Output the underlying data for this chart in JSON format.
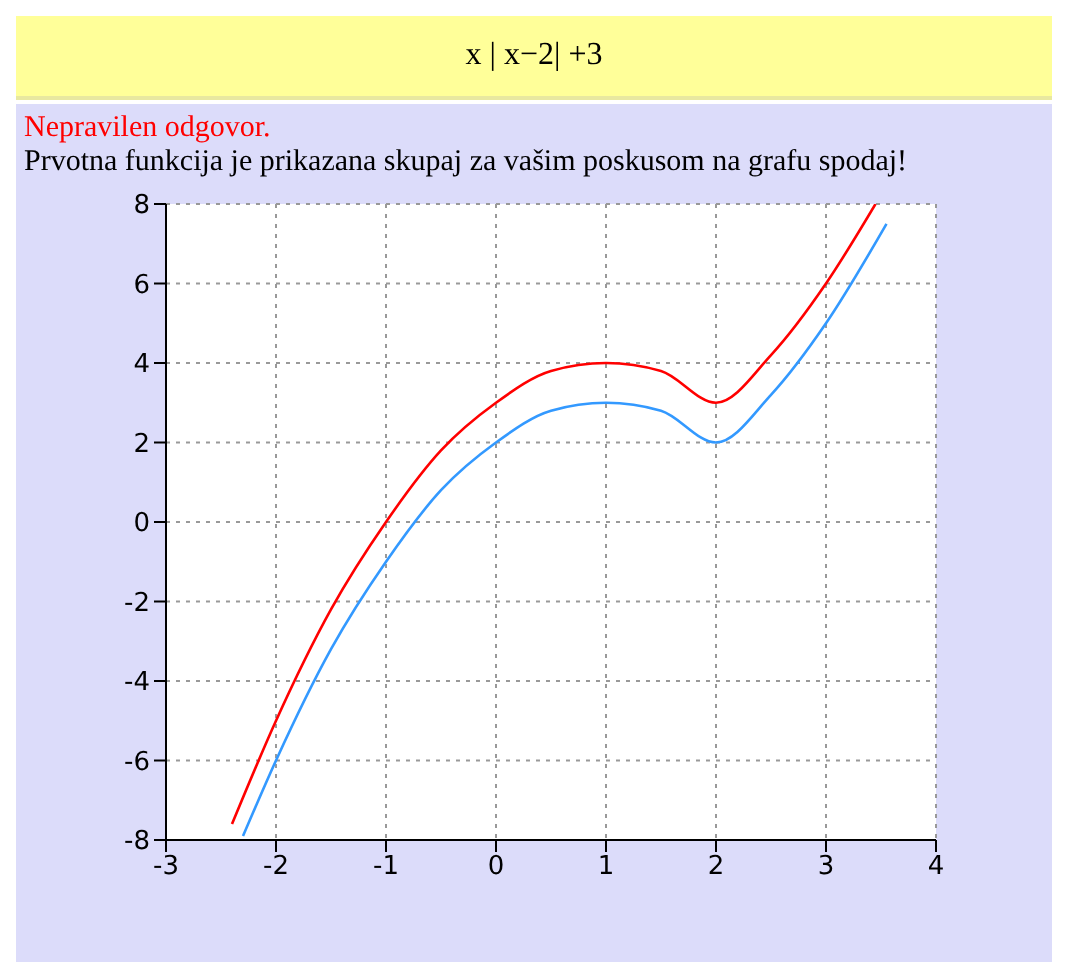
{
  "chart_data": {
    "type": "line",
    "title": "x | x−2| +3",
    "subtitle": "Nepravilen odgovor.",
    "annotations": [
      "Prvotna funkcija je prikazana skupaj za vašim poskusom na grafu spodaj!"
    ],
    "series": [
      {
        "color": "#ff0000",
        "x": [
          -2.4,
          -2,
          -1.5,
          -1,
          -0.5,
          0,
          0.5,
          1,
          1.5,
          2,
          2.5,
          3,
          3.45
        ],
        "values": [
          -7.6,
          -5,
          -2.2,
          0,
          1.8,
          3,
          3.8,
          4,
          3.8,
          3,
          4.2,
          6,
          8
        ]
      },
      {
        "color": "#3399ff",
        "x": [
          -2.3,
          -2,
          -1.5,
          -1,
          -0.5,
          0,
          0.5,
          1,
          1.5,
          2,
          2.5,
          3,
          3.55
        ],
        "values": [
          -7.9,
          -6,
          -3.2,
          -1,
          0.8,
          2,
          2.8,
          3,
          2.8,
          2,
          3.2,
          5,
          7.5
        ]
      }
    ],
    "xlim": [
      -3,
      4
    ],
    "xticks": [
      -3,
      -2,
      -1,
      0,
      1,
      2,
      3,
      4
    ],
    "ylim": [
      -8,
      8
    ],
    "yticks": [
      -8,
      -6,
      -4,
      -2,
      0,
      2,
      4,
      6,
      8
    ],
    "grid": true,
    "marker": "none",
    "line_style": "solid",
    "legend": false
  }
}
